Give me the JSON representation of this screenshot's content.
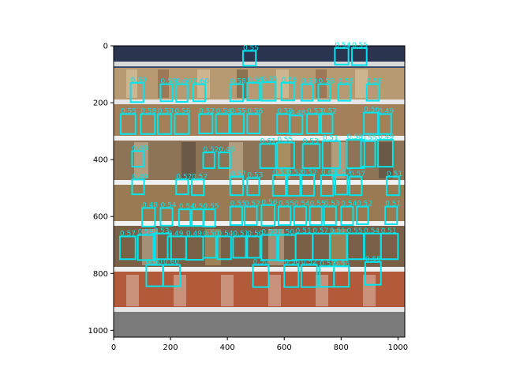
{
  "image": {
    "description_icon": "grocery-shelf-photo",
    "x_extent": [
      0,
      1024
    ],
    "y_extent": [
      1024,
      0
    ]
  },
  "axes": {
    "x_ticks": [
      0,
      200,
      400,
      600,
      800,
      1000
    ],
    "y_ticks": [
      0,
      200,
      400,
      600,
      800,
      1000
    ],
    "x_labels": [
      "0",
      "200",
      "400",
      "600",
      "800",
      "1000"
    ],
    "y_labels": [
      "0",
      "200",
      "400",
      "600",
      "800",
      "1000"
    ]
  },
  "box_color": "#00e5ee",
  "label_color": "#00e5ee",
  "detections": [
    {
      "score": "0.55",
      "x": 455,
      "y": 18,
      "w": 45,
      "h": 52
    },
    {
      "score": "0.54",
      "x": 778,
      "y": 8,
      "w": 48,
      "h": 58
    },
    {
      "score": "0.55",
      "x": 838,
      "y": 8,
      "w": 52,
      "h": 60
    },
    {
      "score": "0.60",
      "x": 60,
      "y": 130,
      "w": 45,
      "h": 68
    },
    {
      "score": "0.58",
      "x": 165,
      "y": 135,
      "w": 42,
      "h": 60
    },
    {
      "score": "0.60",
      "x": 220,
      "y": 135,
      "w": 40,
      "h": 62
    },
    {
      "score": "0.60",
      "x": 280,
      "y": 135,
      "w": 42,
      "h": 60
    },
    {
      "score": "0.58",
      "x": 410,
      "y": 135,
      "w": 45,
      "h": 60
    },
    {
      "score": "0.56",
      "x": 470,
      "y": 130,
      "w": 44,
      "h": 62
    },
    {
      "score": "0.55",
      "x": 520,
      "y": 128,
      "w": 50,
      "h": 65
    },
    {
      "score": "0.58",
      "x": 590,
      "y": 130,
      "w": 46,
      "h": 62
    },
    {
      "score": "0.60",
      "x": 660,
      "y": 135,
      "w": 40,
      "h": 58
    },
    {
      "score": "0.58",
      "x": 720,
      "y": 135,
      "w": 40,
      "h": 58
    },
    {
      "score": "0.59",
      "x": 790,
      "y": 135,
      "w": 42,
      "h": 58
    },
    {
      "score": "0.58",
      "x": 890,
      "y": 135,
      "w": 42,
      "h": 58
    },
    {
      "score": "0.55",
      "x": 25,
      "y": 240,
      "w": 52,
      "h": 70
    },
    {
      "score": "0.58",
      "x": 95,
      "y": 240,
      "w": 50,
      "h": 70
    },
    {
      "score": "0.58",
      "x": 155,
      "y": 240,
      "w": 48,
      "h": 70
    },
    {
      "score": "0.56",
      "x": 215,
      "y": 240,
      "w": 50,
      "h": 70
    },
    {
      "score": "0.52",
      "x": 300,
      "y": 240,
      "w": 48,
      "h": 68
    },
    {
      "score": "0.54",
      "x": 360,
      "y": 240,
      "w": 46,
      "h": 68
    },
    {
      "score": "0.55",
      "x": 410,
      "y": 240,
      "w": 48,
      "h": 68
    },
    {
      "score": "0.56",
      "x": 470,
      "y": 240,
      "w": 44,
      "h": 68
    },
    {
      "score": "0.50",
      "x": 575,
      "y": 240,
      "w": 44,
      "h": 68
    },
    {
      "score": "0.48",
      "x": 620,
      "y": 245,
      "w": 44,
      "h": 65
    },
    {
      "score": "0.53",
      "x": 680,
      "y": 240,
      "w": 42,
      "h": 68
    },
    {
      "score": "0.52",
      "x": 730,
      "y": 240,
      "w": 40,
      "h": 68
    },
    {
      "score": "0.56",
      "x": 880,
      "y": 235,
      "w": 52,
      "h": 75
    },
    {
      "score": "0.49",
      "x": 930,
      "y": 240,
      "w": 46,
      "h": 70
    },
    {
      "score": "0.48",
      "x": 65,
      "y": 370,
      "w": 40,
      "h": 55
    },
    {
      "score": "0.52",
      "x": 315,
      "y": 375,
      "w": 40,
      "h": 55
    },
    {
      "score": "0.48",
      "x": 370,
      "y": 375,
      "w": 40,
      "h": 55
    },
    {
      "score": "0.61",
      "x": 515,
      "y": 345,
      "w": 55,
      "h": 85
    },
    {
      "score": "0.55",
      "x": 575,
      "y": 340,
      "w": 60,
      "h": 90
    },
    {
      "score": "0.53",
      "x": 665,
      "y": 345,
      "w": 60,
      "h": 85
    },
    {
      "score": "0.51",
      "x": 735,
      "y": 335,
      "w": 60,
      "h": 95
    },
    {
      "score": "0.58",
      "x": 820,
      "y": 330,
      "w": 62,
      "h": 100
    },
    {
      "score": "0.55",
      "x": 870,
      "y": 335,
      "w": 50,
      "h": 90
    },
    {
      "score": "0.49",
      "x": 930,
      "y": 330,
      "w": 52,
      "h": 95
    },
    {
      "score": "0.49",
      "x": 65,
      "y": 470,
      "w": 42,
      "h": 52
    },
    {
      "score": "0.57",
      "x": 220,
      "y": 470,
      "w": 42,
      "h": 52
    },
    {
      "score": "0.57",
      "x": 275,
      "y": 470,
      "w": 42,
      "h": 55
    },
    {
      "score": "0.57",
      "x": 410,
      "y": 460,
      "w": 45,
      "h": 65
    },
    {
      "score": "0.53",
      "x": 470,
      "y": 465,
      "w": 42,
      "h": 60
    },
    {
      "score": "0.53",
      "x": 560,
      "y": 455,
      "w": 45,
      "h": 72
    },
    {
      "score": "0.52",
      "x": 610,
      "y": 455,
      "w": 46,
      "h": 72
    },
    {
      "score": "0.52",
      "x": 660,
      "y": 455,
      "w": 45,
      "h": 72
    },
    {
      "score": "0.61",
      "x": 730,
      "y": 455,
      "w": 42,
      "h": 72
    },
    {
      "score": "0.57",
      "x": 780,
      "y": 455,
      "w": 42,
      "h": 68
    },
    {
      "score": "0.57",
      "x": 830,
      "y": 460,
      "w": 42,
      "h": 65
    },
    {
      "score": "0.51",
      "x": 960,
      "y": 460,
      "w": 44,
      "h": 65
    },
    {
      "score": "0.48",
      "x": 100,
      "y": 570,
      "w": 45,
      "h": 65
    },
    {
      "score": "0.54",
      "x": 165,
      "y": 570,
      "w": 42,
      "h": 62
    },
    {
      "score": "0.54",
      "x": 230,
      "y": 575,
      "w": 40,
      "h": 58
    },
    {
      "score": "0.50",
      "x": 275,
      "y": 575,
      "w": 42,
      "h": 58
    },
    {
      "score": "0.55",
      "x": 315,
      "y": 575,
      "w": 42,
      "h": 60
    },
    {
      "score": "0.55",
      "x": 410,
      "y": 565,
      "w": 42,
      "h": 65
    },
    {
      "score": "0.52",
      "x": 460,
      "y": 565,
      "w": 44,
      "h": 65
    },
    {
      "score": "0.56",
      "x": 520,
      "y": 560,
      "w": 46,
      "h": 72
    },
    {
      "score": "0.55",
      "x": 580,
      "y": 565,
      "w": 42,
      "h": 65
    },
    {
      "score": "0.54",
      "x": 635,
      "y": 565,
      "w": 42,
      "h": 65
    },
    {
      "score": "0.55",
      "x": 690,
      "y": 565,
      "w": 42,
      "h": 65
    },
    {
      "score": "0.53",
      "x": 740,
      "y": 565,
      "w": 42,
      "h": 65
    },
    {
      "score": "0.54",
      "x": 800,
      "y": 565,
      "w": 42,
      "h": 65
    },
    {
      "score": "0.52",
      "x": 855,
      "y": 565,
      "w": 40,
      "h": 62
    },
    {
      "score": "0.51",
      "x": 955,
      "y": 565,
      "w": 42,
      "h": 62
    },
    {
      "score": "0.57",
      "x": 22,
      "y": 670,
      "w": 55,
      "h": 80
    },
    {
      "score": "0.59",
      "x": 85,
      "y": 665,
      "w": 60,
      "h": 88
    },
    {
      "score": "0.53",
      "x": 140,
      "y": 660,
      "w": 62,
      "h": 90
    },
    {
      "score": "0.49",
      "x": 190,
      "y": 670,
      "w": 65,
      "h": 80
    },
    {
      "score": "0.49",
      "x": 255,
      "y": 670,
      "w": 60,
      "h": 82
    },
    {
      "score": "0.50",
      "x": 315,
      "y": 670,
      "w": 45,
      "h": 75
    },
    {
      "score": "0.54",
      "x": 365,
      "y": 670,
      "w": 48,
      "h": 80
    },
    {
      "score": "0.51",
      "x": 420,
      "y": 670,
      "w": 45,
      "h": 75
    },
    {
      "score": "0.50",
      "x": 470,
      "y": 670,
      "w": 45,
      "h": 75
    },
    {
      "score": "0.50",
      "x": 520,
      "y": 665,
      "w": 55,
      "h": 88
    },
    {
      "score": "0.50",
      "x": 580,
      "y": 665,
      "w": 60,
      "h": 90
    },
    {
      "score": "0.51",
      "x": 640,
      "y": 660,
      "w": 60,
      "h": 92
    },
    {
      "score": "0.57",
      "x": 700,
      "y": 660,
      "w": 62,
      "h": 92
    },
    {
      "score": "0.51",
      "x": 760,
      "y": 660,
      "w": 62,
      "h": 92
    },
    {
      "score": "0.55",
      "x": 820,
      "y": 660,
      "w": 62,
      "h": 90
    },
    {
      "score": "0.54",
      "x": 880,
      "y": 660,
      "w": 60,
      "h": 90
    },
    {
      "score": "0.51",
      "x": 940,
      "y": 660,
      "w": 60,
      "h": 90
    },
    {
      "score": "0.60",
      "x": 115,
      "y": 770,
      "w": 58,
      "h": 75
    },
    {
      "score": "0.60",
      "x": 175,
      "y": 770,
      "w": 58,
      "h": 75
    },
    {
      "score": "0.50",
      "x": 490,
      "y": 770,
      "w": 55,
      "h": 78
    },
    {
      "score": "0.56",
      "x": 600,
      "y": 770,
      "w": 50,
      "h": 78
    },
    {
      "score": "0.52",
      "x": 660,
      "y": 770,
      "w": 55,
      "h": 78
    },
    {
      "score": "0.57",
      "x": 725,
      "y": 775,
      "w": 50,
      "h": 72
    },
    {
      "score": "0.53",
      "x": 775,
      "y": 775,
      "w": 52,
      "h": 72
    },
    {
      "score": "0.55",
      "x": 885,
      "y": 760,
      "w": 55,
      "h": 80
    }
  ]
}
